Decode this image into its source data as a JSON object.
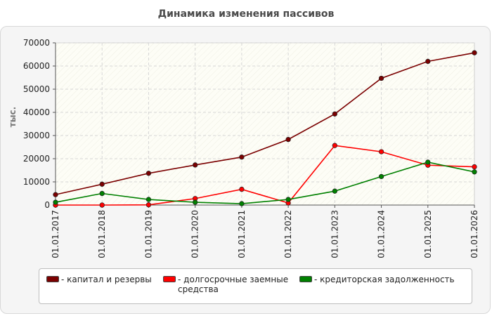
{
  "chart_data": {
    "type": "line",
    "title": "Динамика изменения пассивов",
    "ylabel": "тыс.",
    "xlabel": "",
    "ylim": [
      0,
      70000
    ],
    "yticks": [
      0,
      10000,
      20000,
      30000,
      40000,
      50000,
      60000,
      70000
    ],
    "grid": true,
    "legend_position": "bottom",
    "categories": [
      "01.01.2017",
      "01.01.2018",
      "01.01.2019",
      "01.01.2020",
      "01.01.2021",
      "01.01.2022",
      "01.01.2023",
      "01.01.2024",
      "01.01.2025",
      "01.01.2026"
    ],
    "series": [
      {
        "name": "капитал и резервы",
        "color": "#7b0000",
        "values": [
          4500,
          9000,
          13700,
          17300,
          20700,
          28300,
          39300,
          54700,
          62000,
          65700
        ]
      },
      {
        "name": "долгосрочные заемные средства",
        "color": "#ff0000",
        "values": [
          0,
          0,
          100,
          2800,
          6800,
          900,
          25700,
          23000,
          17200,
          16500
        ]
      },
      {
        "name": "кредиторская задолженность",
        "color": "#008000",
        "values": [
          1200,
          5000,
          2400,
          1200,
          600,
          2400,
          6000,
          12300,
          18500,
          14300
        ]
      }
    ]
  },
  "legend": {
    "items": [
      {
        "label": "- капитал и резервы",
        "color": "#7b0000"
      },
      {
        "label": "- долгосрочные заемные средства",
        "color": "#ff0000"
      },
      {
        "label": "- кредиторская задолженность",
        "color": "#008000"
      }
    ]
  }
}
